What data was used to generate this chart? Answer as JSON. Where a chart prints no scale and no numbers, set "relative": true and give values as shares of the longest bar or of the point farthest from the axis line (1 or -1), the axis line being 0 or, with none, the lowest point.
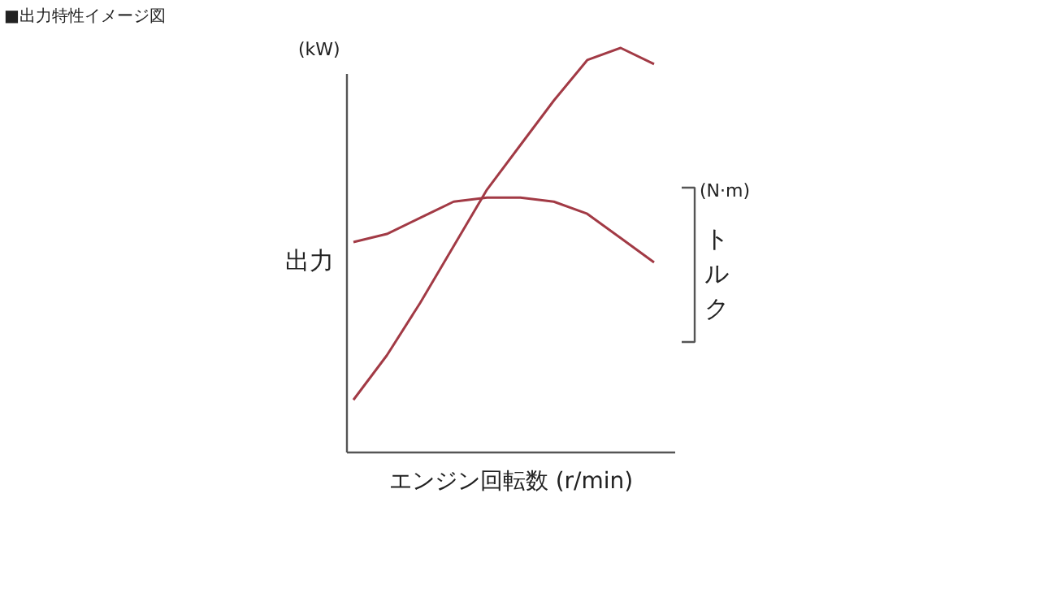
{
  "chart_data": {
    "type": "line",
    "relative": true,
    "title": "■出力特性イメージ図",
    "xlabel": "エンジン回転数 (r/min)",
    "ylabel": "出力",
    "y2label": "トルク",
    "annotations": [
      "(kW)",
      "(N·m)"
    ],
    "categories": [
      null,
      null,
      null,
      null,
      null,
      null,
      null,
      null,
      null,
      null
    ],
    "series": [
      {
        "color": "#a23a45",
        "values": [
          0.13,
          0.24,
          0.37,
          0.51,
          0.65,
          0.76,
          0.87,
          0.97,
          1.0,
          0.96
        ]
      },
      {
        "color": "#a23a45",
        "values": [
          0.52,
          0.54,
          0.58,
          0.62,
          0.63,
          0.63,
          0.62,
          0.59,
          0.53,
          0.47
        ]
      }
    ],
    "grid": false,
    "legend": false
  }
}
